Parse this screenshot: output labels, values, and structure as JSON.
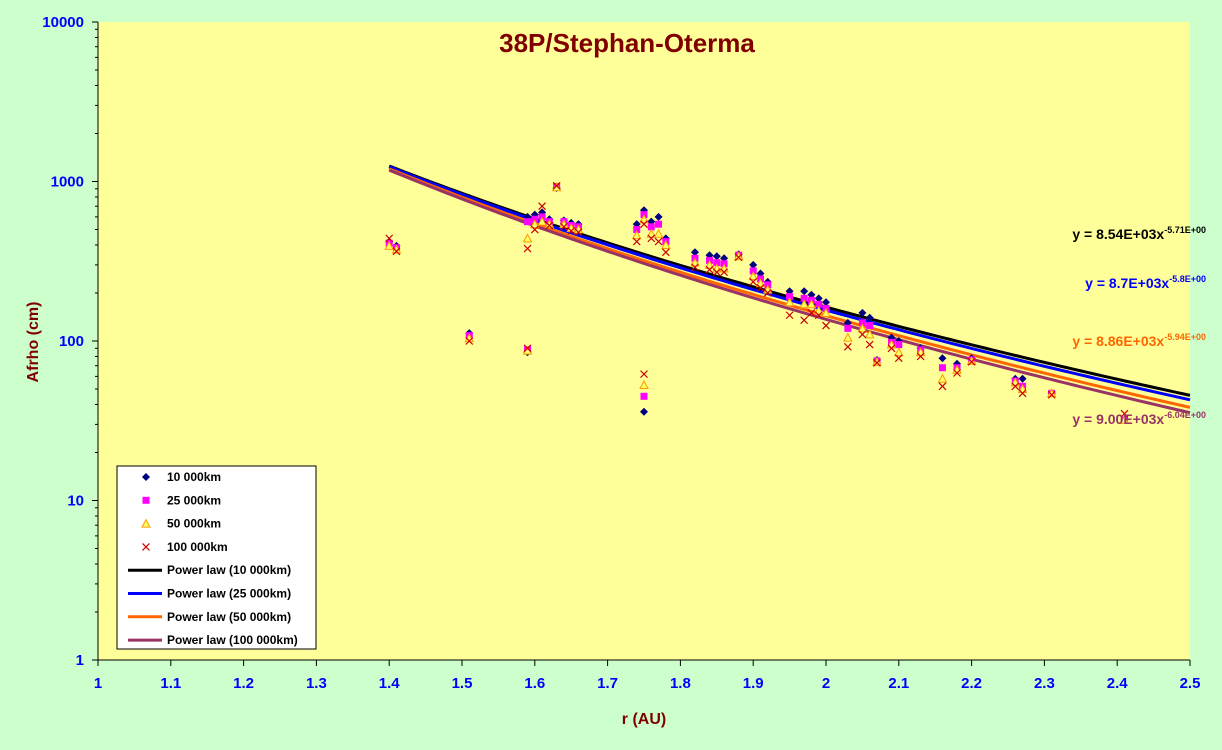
{
  "chart_data": {
    "type": "scatter",
    "title": "38P/Stephan-Oterma",
    "xlabel": "r (AU)",
    "ylabel": "Afrho (cm)",
    "xlim": [
      1,
      2.5
    ],
    "ylim": [
      1,
      10000
    ],
    "y_scale": "log",
    "x_ticks": [
      "1",
      "1.1",
      "1.2",
      "1.3",
      "1.4",
      "1.5",
      "1.6",
      "1.7",
      "1.8",
      "1.9",
      "2",
      "2.1",
      "2.2",
      "2.3",
      "2.4",
      "2.5"
    ],
    "y_ticks": [
      "1",
      "10",
      "100",
      "1000",
      "10000"
    ],
    "grid": false,
    "legend_position": "bottom-left",
    "colors": {
      "page_background": "#ccffcc",
      "plot_background": "#ffff99",
      "title": "#800000",
      "tick_labels": "#0000ff"
    },
    "series": [
      {
        "name": "10 000km",
        "kind": "points",
        "marker": "diamond",
        "color": "#000080",
        "x": [
          1.4,
          1.41,
          1.51,
          1.59,
          1.59,
          1.6,
          1.61,
          1.62,
          1.63,
          1.64,
          1.65,
          1.66,
          1.74,
          1.75,
          1.75,
          1.76,
          1.77,
          1.78,
          1.82,
          1.84,
          1.85,
          1.86,
          1.88,
          1.9,
          1.91,
          1.92,
          1.95,
          1.97,
          1.98,
          1.99,
          2.0,
          2.03,
          2.05,
          2.06,
          2.07,
          2.09,
          2.1,
          2.13,
          2.16,
          2.18,
          2.2,
          2.26,
          2.27,
          2.31,
          2.41
        ],
        "y": [
          420,
          395,
          112,
          85,
          600,
          620,
          640,
          580,
          910,
          570,
          550,
          540,
          540,
          660,
          36,
          560,
          600,
          440,
          360,
          345,
          340,
          330,
          350,
          300,
          265,
          235,
          205,
          205,
          195,
          185,
          175,
          130,
          150,
          140,
          76,
          105,
          100,
          90,
          78,
          72,
          78,
          58,
          58,
          47,
          32
        ]
      },
      {
        "name": "25 000km",
        "kind": "points",
        "marker": "square",
        "color": "#ff00ff",
        "x": [
          1.4,
          1.41,
          1.51,
          1.59,
          1.59,
          1.6,
          1.61,
          1.62,
          1.63,
          1.64,
          1.65,
          1.66,
          1.74,
          1.75,
          1.75,
          1.76,
          1.77,
          1.78,
          1.82,
          1.84,
          1.85,
          1.86,
          1.88,
          1.9,
          1.91,
          1.92,
          1.95,
          1.97,
          1.98,
          1.99,
          2.0,
          2.03,
          2.05,
          2.06,
          2.07,
          2.09,
          2.1,
          2.13,
          2.16,
          2.18,
          2.2,
          2.26,
          2.27,
          2.31,
          2.41
        ],
        "y": [
          410,
          385,
          108,
          88,
          560,
          580,
          600,
          560,
          930,
          560,
          530,
          520,
          500,
          620,
          45,
          520,
          540,
          420,
          330,
          320,
          310,
          305,
          345,
          275,
          245,
          225,
          190,
          185,
          180,
          170,
          160,
          120,
          130,
          125,
          75,
          98,
          95,
          88,
          68,
          68,
          76,
          56,
          52,
          47,
          32
        ]
      },
      {
        "name": "50 000km",
        "kind": "points",
        "marker": "triangle",
        "color": "#ff9900",
        "x": [
          1.4,
          1.41,
          1.51,
          1.59,
          1.59,
          1.6,
          1.61,
          1.62,
          1.63,
          1.64,
          1.65,
          1.66,
          1.74,
          1.75,
          1.75,
          1.76,
          1.77,
          1.78,
          1.82,
          1.84,
          1.85,
          1.86,
          1.88,
          1.9,
          1.91,
          1.92,
          1.95,
          1.97,
          1.98,
          1.99,
          2.0,
          2.03,
          2.05,
          2.06,
          2.07,
          2.09,
          2.1,
          2.13,
          2.16,
          2.18,
          2.2,
          2.26,
          2.27,
          2.31,
          2.41
        ],
        "y": [
          395,
          375,
          104,
          87,
          440,
          540,
          560,
          540,
          920,
          540,
          510,
          500,
          460,
          580,
          53,
          470,
          470,
          400,
          310,
          300,
          285,
          285,
          340,
          255,
          230,
          210,
          175,
          170,
          170,
          155,
          150,
          105,
          120,
          110,
          74,
          95,
          85,
          85,
          58,
          66,
          75,
          55,
          50,
          47,
          32
        ]
      },
      {
        "name": "100 000km",
        "kind": "points",
        "marker": "x",
        "color": "#cc0000",
        "x": [
          1.4,
          1.41,
          1.51,
          1.59,
          1.59,
          1.6,
          1.61,
          1.62,
          1.63,
          1.64,
          1.65,
          1.66,
          1.74,
          1.75,
          1.75,
          1.76,
          1.77,
          1.78,
          1.82,
          1.84,
          1.85,
          1.86,
          1.88,
          1.9,
          1.91,
          1.92,
          1.95,
          1.97,
          1.98,
          1.99,
          2.0,
          2.03,
          2.05,
          2.06,
          2.07,
          2.09,
          2.1,
          2.13,
          2.16,
          2.18,
          2.2,
          2.26,
          2.27,
          2.31,
          2.41
        ],
        "y": [
          440,
          365,
          100,
          90,
          380,
          500,
          700,
          530,
          940,
          520,
          490,
          480,
          420,
          540,
          62,
          440,
          420,
          360,
          290,
          280,
          270,
          270,
          335,
          235,
          215,
          200,
          145,
          135,
          150,
          145,
          125,
          92,
          110,
          95,
          73,
          90,
          78,
          80,
          52,
          63,
          74,
          52,
          47,
          46,
          35
        ]
      },
      {
        "name": "Power law (10 000km)",
        "kind": "fit",
        "color": "#000000",
        "a": 8540,
        "b": -5.71
      },
      {
        "name": "Power law (25 000km)",
        "kind": "fit",
        "color": "#0000ff",
        "a": 8700,
        "b": -5.8
      },
      {
        "name": "Power law (50 000km)",
        "kind": "fit",
        "color": "#ff6600",
        "a": 8860,
        "b": -5.94
      },
      {
        "name": "Power law (100 000km)",
        "kind": "fit",
        "color": "#993366",
        "a": 9000,
        "b": -6.04
      }
    ],
    "annotations": [
      {
        "main": "y = 8.54E+03x",
        "sup": "-5.71E+00",
        "color": "#000000"
      },
      {
        "main": "y = 8.7E+03x",
        "sup": "-5.8E+00",
        "color": "#0000ff"
      },
      {
        "main": "y = 8.86E+03x",
        "sup": "-5.94E+00",
        "color": "#ff6600"
      },
      {
        "main": "y = 9.00E+03x",
        "sup": "-6.04E+00",
        "color": "#993366"
      }
    ]
  }
}
